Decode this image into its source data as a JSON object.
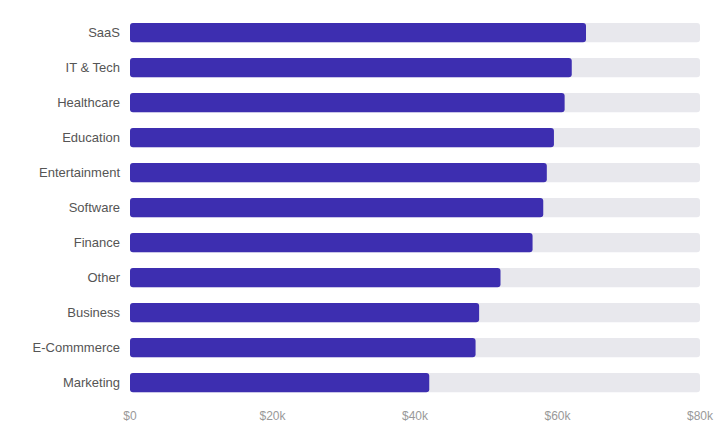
{
  "chart_data": {
    "type": "bar",
    "orientation": "horizontal",
    "categories": [
      "SaaS",
      "IT & Tech",
      "Healthcare",
      "Education",
      "Entertainment",
      "Software",
      "Finance",
      "Other",
      "Business",
      "E-Commmerce",
      "Marketing"
    ],
    "values": [
      64000,
      62000,
      61000,
      59500,
      58500,
      58000,
      56500,
      52000,
      49000,
      48500,
      42000
    ],
    "color": "#3d2eb0",
    "xlim": [
      0,
      80000
    ],
    "xticks": [
      {
        "value": 0,
        "label": "$0"
      },
      {
        "value": 20000,
        "label": "$20k"
      },
      {
        "value": 40000,
        "label": "$40k"
      },
      {
        "value": 60000,
        "label": "$60k"
      },
      {
        "value": 80000,
        "label": "$80k"
      }
    ]
  }
}
